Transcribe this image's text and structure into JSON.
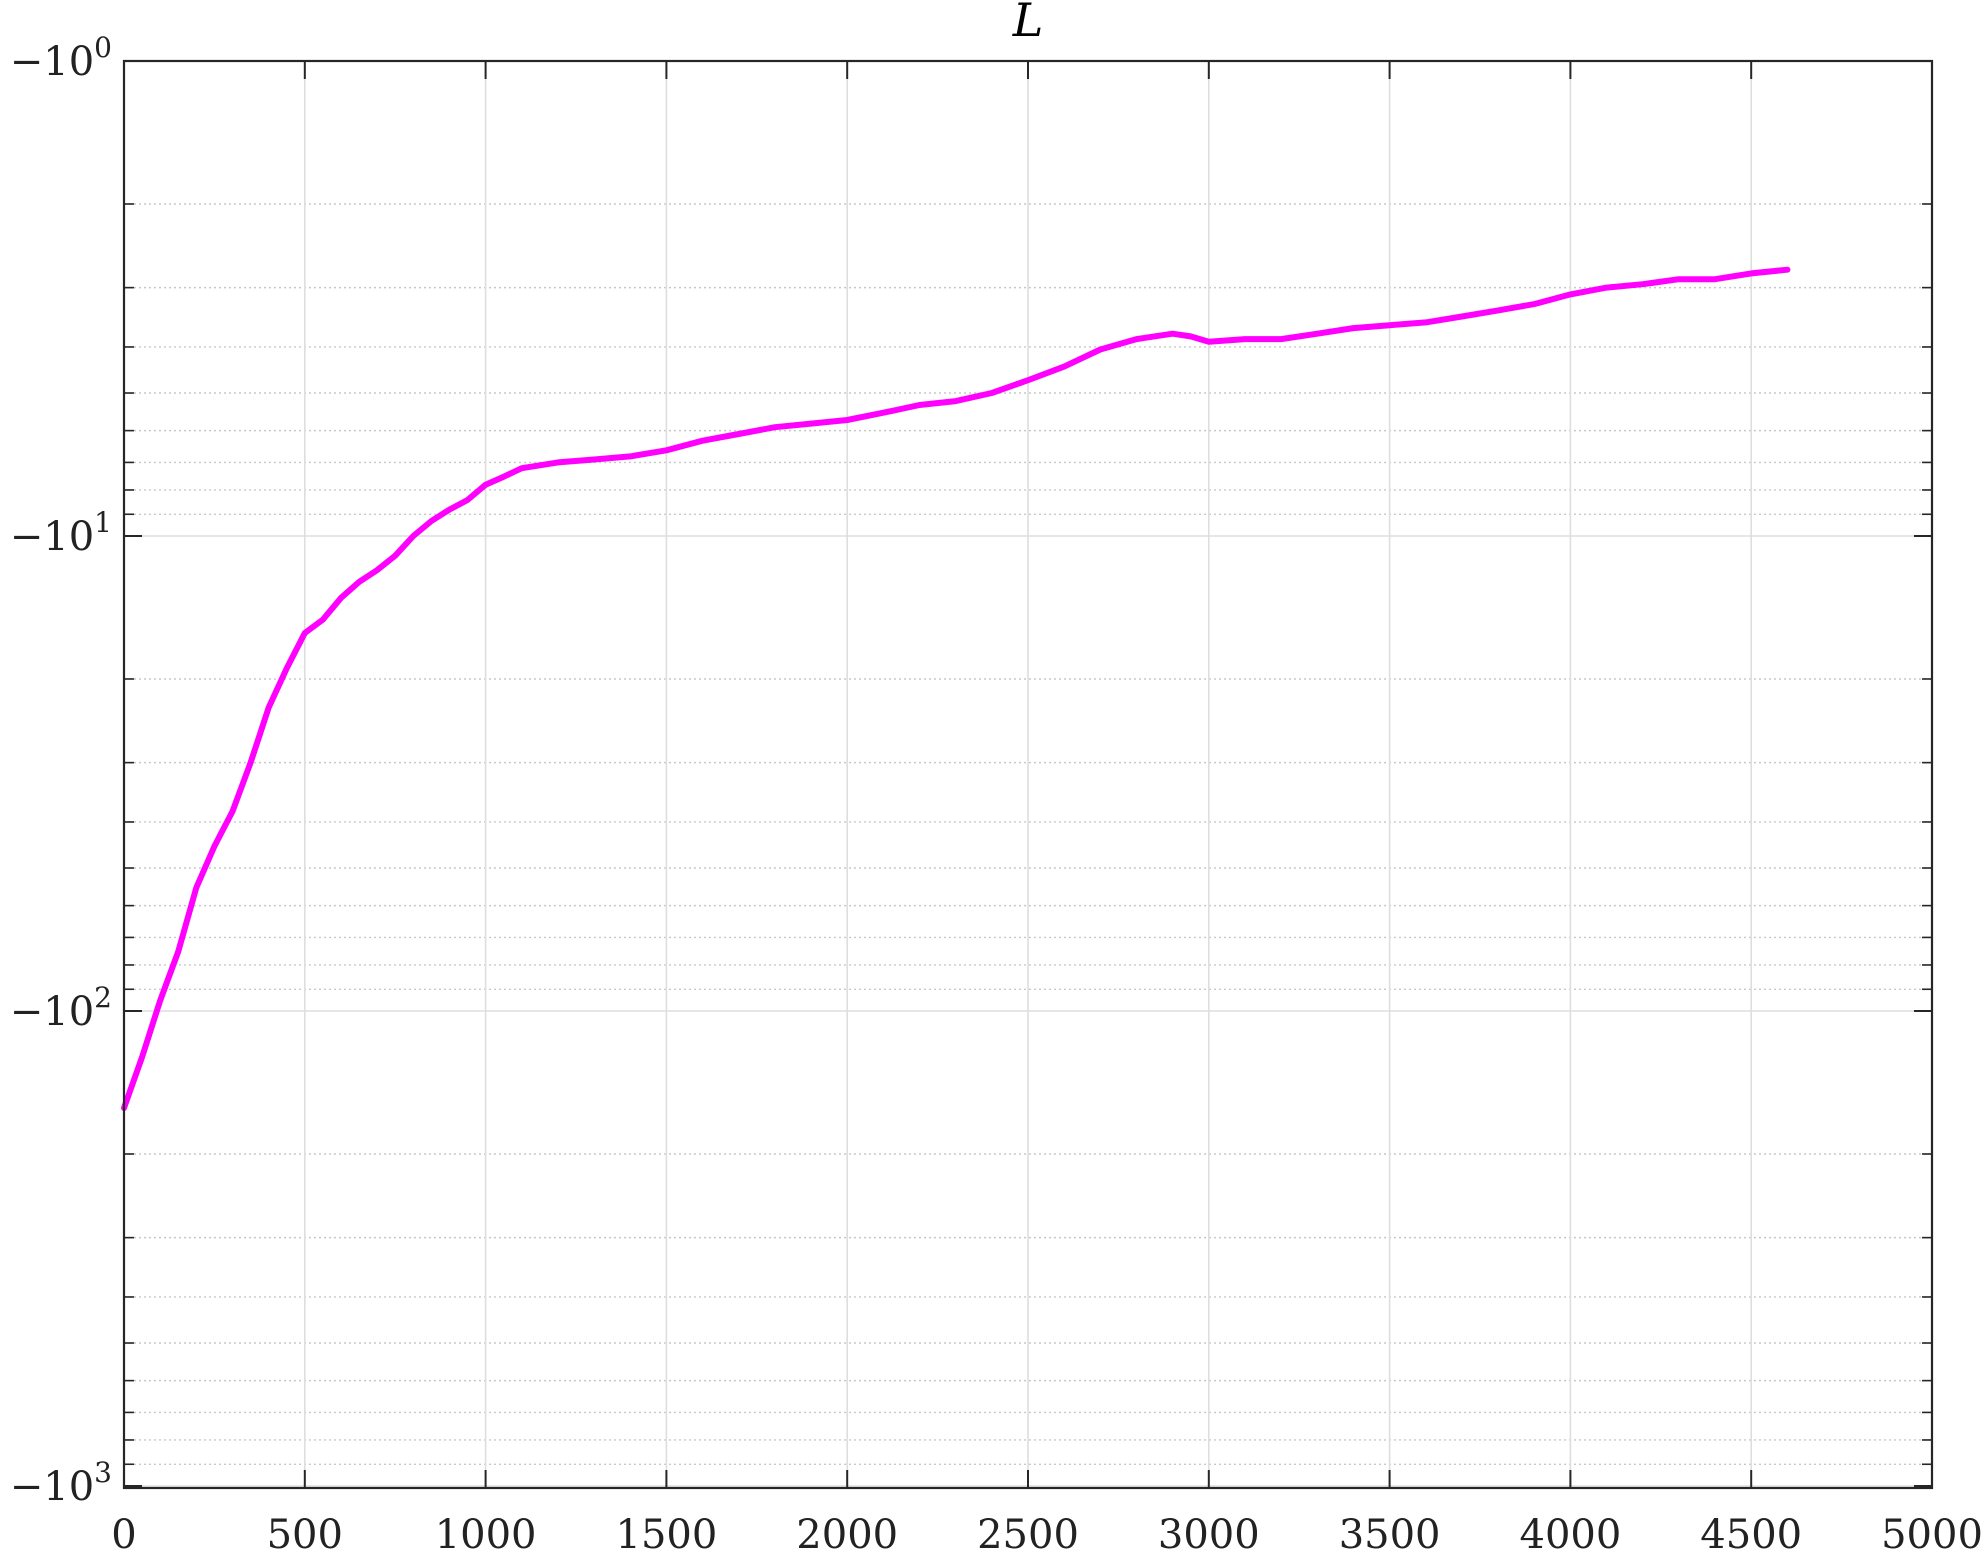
{
  "chart_data": {
    "type": "line",
    "title": "L",
    "xlabel": "",
    "ylabel": "",
    "xlim": [
      0,
      5000
    ],
    "ylim": [
      -1000,
      -1
    ],
    "yscale": "symlog-negative (log of magnitude, -10^3 at bottom to -10^0 at top)",
    "grid": {
      "major": true,
      "minor_y": true
    },
    "x_ticks": [
      {
        "value": 0,
        "label": "0"
      },
      {
        "value": 500,
        "label": "500"
      },
      {
        "value": 1000,
        "label": "1000"
      },
      {
        "value": 1500,
        "label": "1500"
      },
      {
        "value": 2000,
        "label": "2000"
      },
      {
        "value": 2500,
        "label": "2500"
      },
      {
        "value": 3000,
        "label": "3000"
      },
      {
        "value": 3500,
        "label": "3500"
      },
      {
        "value": 4000,
        "label": "4000"
      },
      {
        "value": 4500,
        "label": "4500"
      },
      {
        "value": 5000,
        "label": "5000"
      }
    ],
    "y_ticks": [
      {
        "value": -1,
        "base": "−10",
        "exp": "0"
      },
      {
        "value": -10,
        "base": "−10",
        "exp": "1"
      },
      {
        "value": -100,
        "base": "−10",
        "exp": "2"
      },
      {
        "value": -1000,
        "base": "−10",
        "exp": "3"
      }
    ],
    "series": [
      {
        "color": "#ff00ff",
        "x": [
          0,
          50,
          100,
          150,
          200,
          250,
          300,
          350,
          400,
          450,
          500,
          550,
          600,
          650,
          700,
          750,
          800,
          850,
          900,
          950,
          1000,
          1050,
          1100,
          1200,
          1300,
          1400,
          1500,
          1600,
          1700,
          1800,
          1900,
          2000,
          2100,
          2200,
          2300,
          2400,
          2500,
          2600,
          2700,
          2800,
          2900,
          2950,
          3000,
          3100,
          3200,
          3300,
          3400,
          3500,
          3600,
          3700,
          3800,
          3900,
          4000,
          4100,
          4200,
          4300,
          4400,
          4500,
          4600
        ],
        "y": [
          -160,
          -125,
          -95,
          -75,
          -55,
          -45,
          -38,
          -30,
          -23,
          -19,
          -16,
          -15,
          -13.5,
          -12.5,
          -11.8,
          -11,
          -10,
          -9.3,
          -8.8,
          -8.4,
          -7.8,
          -7.5,
          -7.2,
          -7.0,
          -6.9,
          -6.8,
          -6.6,
          -6.3,
          -6.1,
          -5.9,
          -5.8,
          -5.7,
          -5.5,
          -5.3,
          -5.2,
          -5.0,
          -4.7,
          -4.4,
          -4.05,
          -3.85,
          -3.75,
          -3.8,
          -3.9,
          -3.85,
          -3.85,
          -3.75,
          -3.65,
          -3.6,
          -3.55,
          -3.45,
          -3.35,
          -3.25,
          -3.1,
          -3.0,
          -2.95,
          -2.88,
          -2.88,
          -2.8,
          -2.75
        ]
      }
    ]
  }
}
